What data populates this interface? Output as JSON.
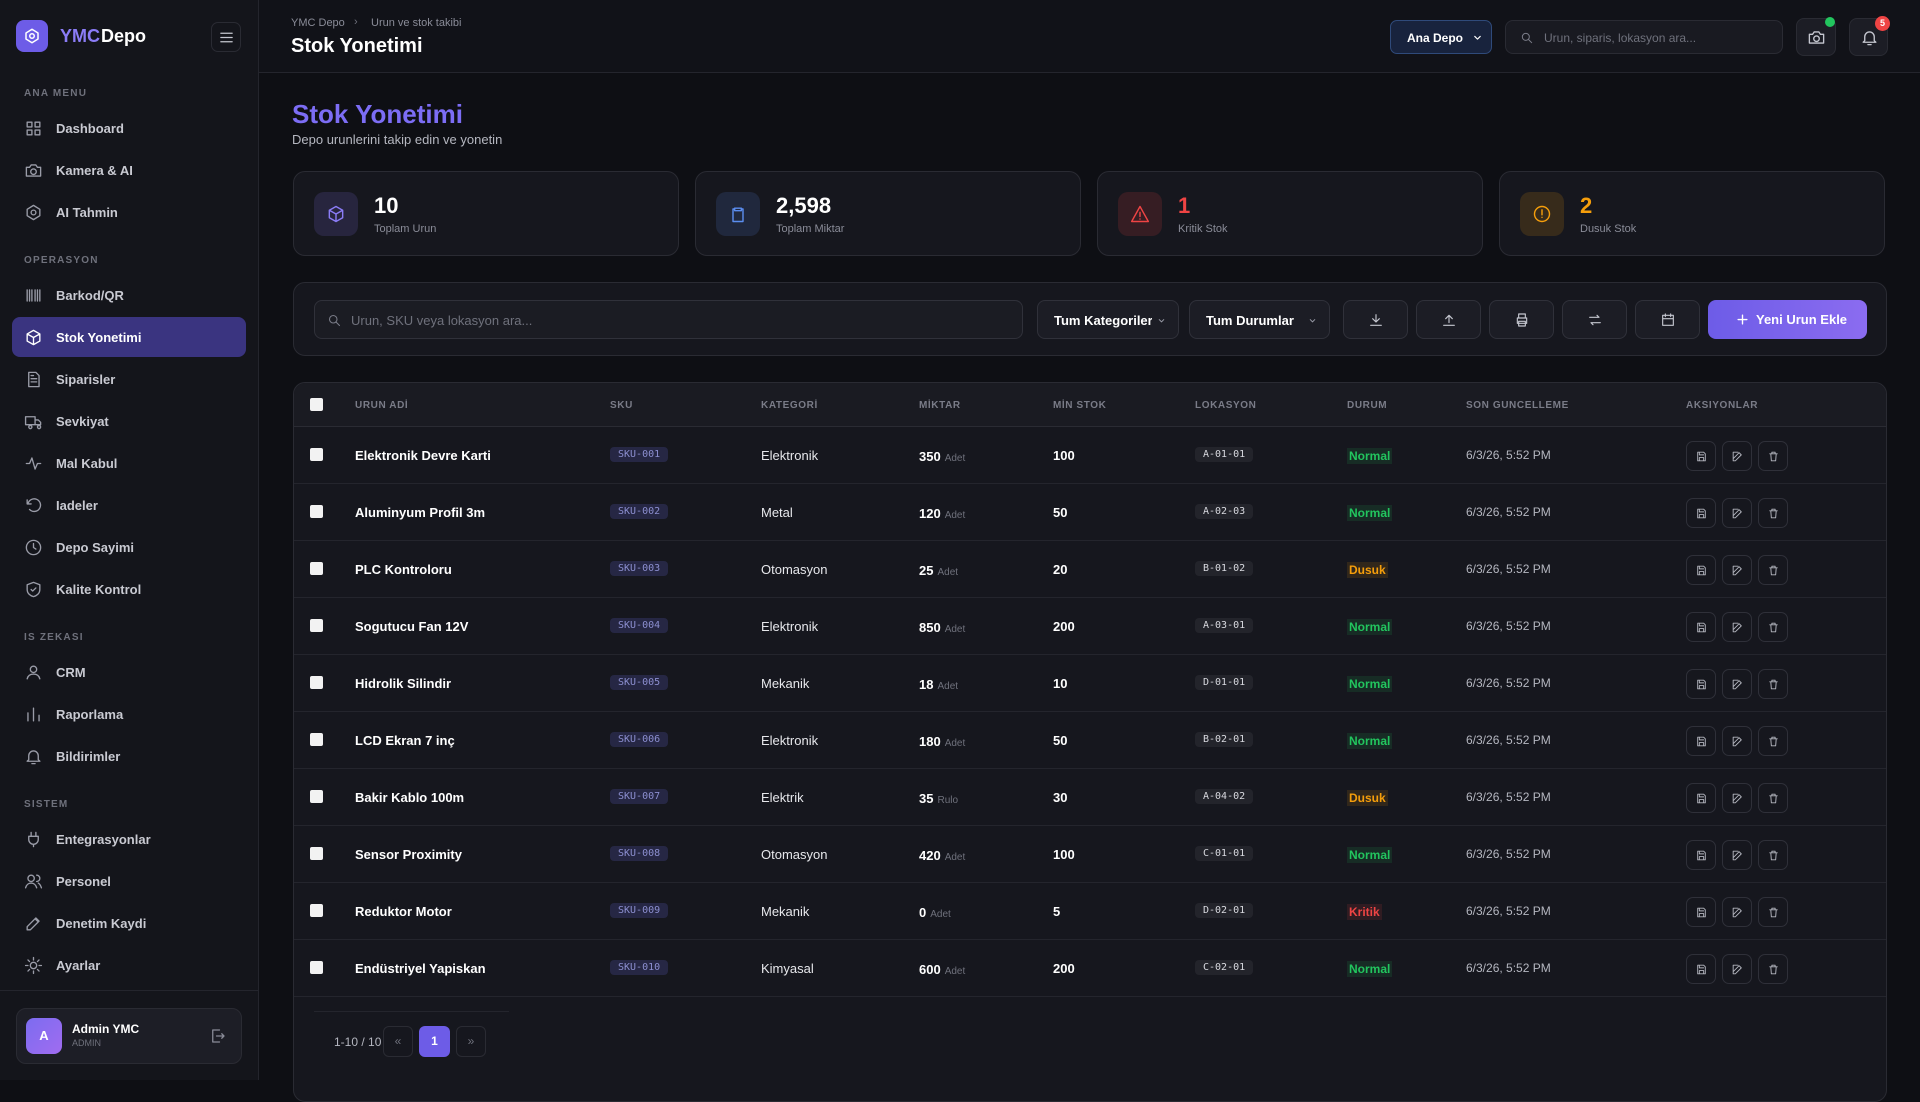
{
  "sidebar": {
    "brand_accent": "YMC",
    "brand_name": "Depo",
    "sections": [
      {
        "title": "ANA MENU",
        "items": [
          "Dashboard",
          "Kamera & AI",
          "AI Tahmin"
        ]
      },
      {
        "title": "OPERASYON",
        "items": [
          "Barkod/QR",
          "Stok Yonetimi",
          "Siparisler",
          "Sevkiyat",
          "Mal Kabul",
          "Iadeler",
          "Depo Sayimi",
          "Kalite Kontrol"
        ]
      },
      {
        "title": "IS ZEKASI",
        "items": [
          "CRM",
          "Raporlama",
          "Bildirimler"
        ]
      },
      {
        "title": "SISTEM",
        "items": [
          "Entegrasyonlar",
          "Personel",
          "Denetim Kaydi",
          "Ayarlar"
        ]
      }
    ],
    "active": "Stok Yonetimi",
    "user": {
      "initial": "A",
      "name": "Admin YMC",
      "role": "ADMIN"
    }
  },
  "header": {
    "breadcrumb": [
      "YMC Depo",
      "Urun ve stok takibi"
    ],
    "title": "Stok Yonetimi",
    "warehouse": "Ana Depo",
    "search_placeholder": "Urun, siparis, lokasyon ara...",
    "notifications": "5"
  },
  "page": {
    "title": "Stok Yonetimi",
    "subtitle": "Depo urunlerini takip edin ve yonetin"
  },
  "stats": [
    {
      "value": "10",
      "label": "Toplam Urun",
      "color": "#ffffff",
      "accent": "#8b7cf6"
    },
    {
      "value": "2,598",
      "label": "Toplam Miktar",
      "color": "#ffffff",
      "accent": "#5b8def"
    },
    {
      "value": "1",
      "label": "Kritik Stok",
      "color": "#ef4444",
      "accent": "#ef4444"
    },
    {
      "value": "2",
      "label": "Dusuk Stok",
      "color": "#f59e0b",
      "accent": "#f59e0b"
    }
  ],
  "toolbar": {
    "search_placeholder": "Urun, SKU veya lokasyon ara...",
    "category": "Tum Kategoriler",
    "status": "Tum Durumlar",
    "add": "Yeni Urun Ekle"
  },
  "table": {
    "columns": [
      "URUN ADİ",
      "SKU",
      "KATEGORİ",
      "MİKTAR",
      "MİN STOK",
      "LOKASYON",
      "DURUM",
      "SON GUNCELLEME",
      "AKSIYONLAR"
    ],
    "rows": [
      {
        "name": "Elektronik Devre Karti",
        "sku": "SKU-001",
        "category": "Elektronik",
        "qty": 350,
        "unit": "Adet",
        "min": 100,
        "location": "A-01-01",
        "status": "Normal",
        "status_color": "#22c55e",
        "updated": "6/3/26, 5:52 PM"
      },
      {
        "name": "Aluminyum Profil 3m",
        "sku": "SKU-002",
        "category": "Metal",
        "qty": 120,
        "unit": "Adet",
        "min": 50,
        "location": "A-02-03",
        "status": "Normal",
        "status_color": "#22c55e",
        "updated": "6/3/26, 5:52 PM"
      },
      {
        "name": "PLC Kontroloru",
        "sku": "SKU-003",
        "category": "Otomasyon",
        "qty": 25,
        "unit": "Adet",
        "min": 20,
        "location": "B-01-02",
        "status": "Dusuk",
        "status_color": "#f59e0b",
        "updated": "6/3/26, 5:52 PM"
      },
      {
        "name": "Sogutucu Fan 12V",
        "sku": "SKU-004",
        "category": "Elektronik",
        "qty": 850,
        "unit": "Adet",
        "min": 200,
        "location": "A-03-01",
        "status": "Normal",
        "status_color": "#22c55e",
        "updated": "6/3/26, 5:52 PM"
      },
      {
        "name": "Hidrolik Silindir",
        "sku": "SKU-005",
        "category": "Mekanik",
        "qty": 18,
        "unit": "Adet",
        "min": 10,
        "location": "D-01-01",
        "status": "Normal",
        "status_color": "#22c55e",
        "updated": "6/3/26, 5:52 PM"
      },
      {
        "name": "LCD Ekran 7 inç",
        "sku": "SKU-006",
        "category": "Elektronik",
        "qty": 180,
        "unit": "Adet",
        "min": 50,
        "location": "B-02-01",
        "status": "Normal",
        "status_color": "#22c55e",
        "updated": "6/3/26, 5:52 PM"
      },
      {
        "name": "Bakir Kablo 100m",
        "sku": "SKU-007",
        "category": "Elektrik",
        "qty": 35,
        "unit": "Rulo",
        "min": 30,
        "location": "A-04-02",
        "status": "Dusuk",
        "status_color": "#f59e0b",
        "updated": "6/3/26, 5:52 PM"
      },
      {
        "name": "Sensor Proximity",
        "sku": "SKU-008",
        "category": "Otomasyon",
        "qty": 420,
        "unit": "Adet",
        "min": 100,
        "location": "C-01-01",
        "status": "Normal",
        "status_color": "#22c55e",
        "updated": "6/3/26, 5:52 PM"
      },
      {
        "name": "Reduktor Motor",
        "sku": "SKU-009",
        "category": "Mekanik",
        "qty": 0,
        "unit": "Adet",
        "min": 5,
        "location": "D-02-01",
        "status": "Kritik",
        "status_color": "#ef4444",
        "updated": "6/3/26, 5:52 PM"
      },
      {
        "name": "Endüstriyel Yapiskan",
        "sku": "SKU-010",
        "category": "Kimyasal",
        "qty": 600,
        "unit": "Adet",
        "min": 200,
        "location": "C-02-01",
        "status": "Normal",
        "status_color": "#22c55e",
        "updated": "6/3/26, 5:52 PM"
      }
    ]
  },
  "pagination": {
    "range": "1-10 / 10",
    "page": "1",
    "prev": "«",
    "next": "»"
  }
}
